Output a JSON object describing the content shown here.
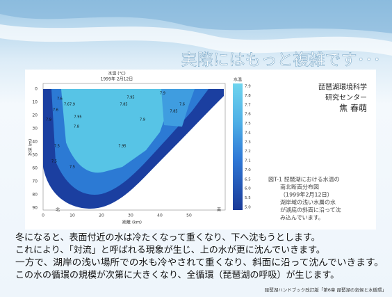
{
  "slide": {
    "title": "実際にはもっと複雑です･･･",
    "figure": {
      "plot_title": "水温 (℃)",
      "plot_date": "1999年 2月12日",
      "y_label": "水深 (m)",
      "x_label": "距離 (km)",
      "north": "北",
      "south": "南",
      "yticks": [
        0,
        10,
        20,
        30,
        40,
        50,
        60,
        70,
        80,
        90
      ],
      "xticks": [
        0,
        10,
        20,
        30,
        40,
        50
      ],
      "colorbar_title": "水温",
      "colorbar_labels": [
        "7.9",
        "7.8",
        "7.7",
        "7.6",
        "7.5",
        "7.4",
        "7.3",
        "7.2",
        "7.1",
        "7.0",
        "6.5",
        "6.0",
        "5.5",
        "5.0"
      ],
      "contour_labels": [
        "7.6",
        "7.6",
        "7.6",
        "7.9",
        "7.5",
        "7.95",
        "7.8",
        "7.9",
        "7.95",
        "7.85",
        "7.95",
        "7.9",
        "7.5",
        "7.5",
        "7.9",
        "7.6",
        "7.85"
      ],
      "author_lines": [
        "琵琶湖環境科学",
        "研究センター",
        "焦 春萌"
      ],
      "caption_lines": [
        "図T-1 琵琶湖における水温の",
        "南北断面分布図",
        "（1999年2月12日）",
        "湖岸域の浅い水層の水",
        "が湖底の斜面に沿って沈",
        "み込んでいます。"
      ]
    },
    "body_lines": [
      "冬になると、表面付近の水は冷たくなって重くなり、下へ沈もうとします。",
      "これにより、「対流」と呼ばれる現象が生じ、上の水が更に沈んでいきます。",
      "一方で、湖岸の浅い場所での水も冷やされて重くなり、斜面に沿って沈んでいきます。",
      "この水の循環の規模が次第に大きくなり、全循環（琵琶湖の呼吸）が生じます。"
    ],
    "footer": "琵琶湖ハンドブック改訂版「第6章 琵琶湖の気候と水循環」"
  }
}
